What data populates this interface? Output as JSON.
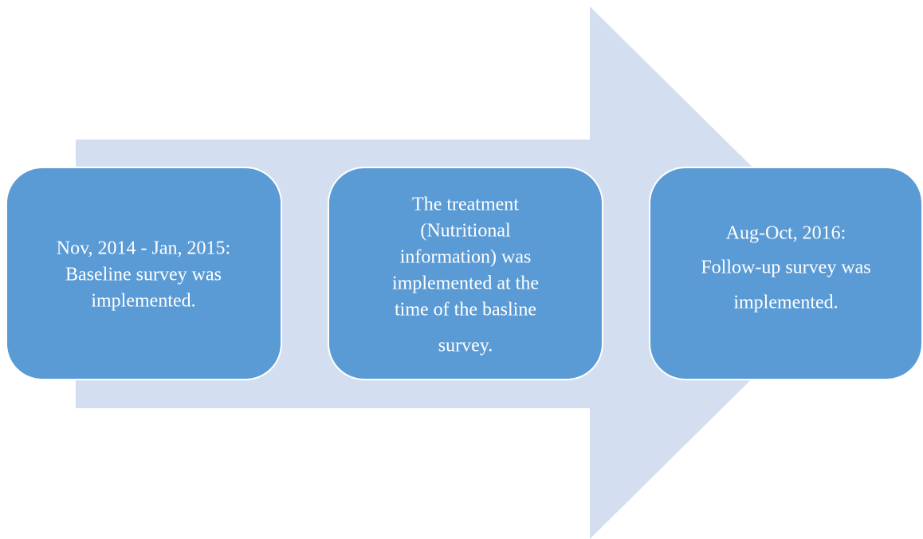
{
  "nodes": [
    {
      "lines": [
        "Nov, 2014 - Jan, 2015:",
        "Baseline survey was",
        "implemented."
      ]
    },
    {
      "lines": [
        "The treatment",
        "(Nutritional",
        "information) was",
        "implemented at the",
        "time of the basline",
        "survey."
      ]
    },
    {
      "lines": [
        "Aug-Oct, 2016:",
        "Follow-up survey was",
        "implemented."
      ]
    }
  ]
}
